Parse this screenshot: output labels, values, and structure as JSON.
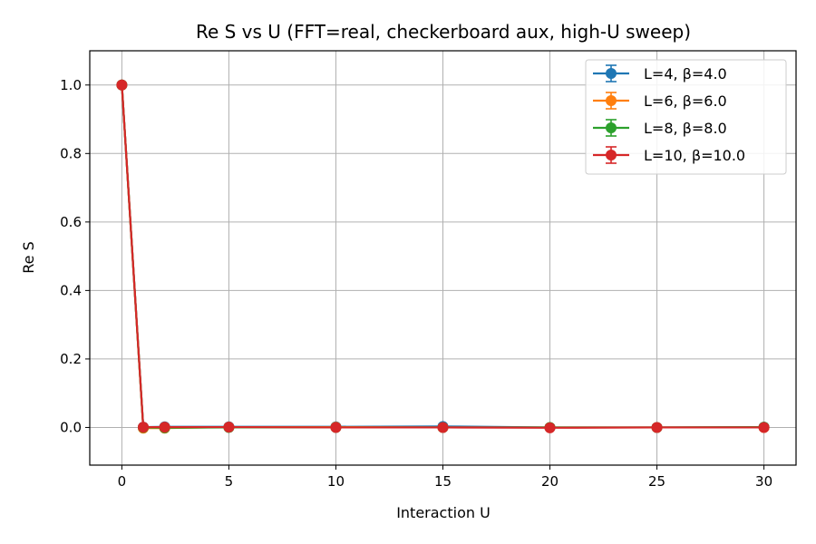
{
  "chart_data": {
    "type": "line",
    "title": "Re S vs U (FFT=real, checkerboard aux, high-U sweep)",
    "xlabel": "Interaction U",
    "ylabel": "Re S",
    "xlim": [
      -1.5,
      31.5
    ],
    "ylim": [
      -0.11,
      1.1
    ],
    "xticks": [
      0,
      5,
      10,
      15,
      20,
      25,
      30
    ],
    "yticks": [
      0.0,
      0.2,
      0.4,
      0.6,
      0.8,
      1.0
    ],
    "xtick_labels": [
      "0",
      "5",
      "10",
      "15",
      "20",
      "25",
      "30"
    ],
    "ytick_labels": [
      "0.0",
      "0.2",
      "0.4",
      "0.6",
      "0.8",
      "1.0"
    ],
    "grid": true,
    "legend_position": "top-right",
    "x": [
      0,
      1,
      2,
      5,
      10,
      15,
      20,
      25,
      30
    ],
    "series": [
      {
        "name": "L=4, β=4.0",
        "color": "#1f77b4",
        "values": [
          1.0,
          0.001,
          0.002,
          0.002,
          0.002,
          0.003,
          0.0,
          0.0,
          0.001
        ]
      },
      {
        "name": "L=6, β=6.0",
        "color": "#ff7f0e",
        "values": [
          1.0,
          -0.002,
          -0.002,
          0.001,
          0.001,
          0.0,
          0.0,
          0.0,
          0.0
        ]
      },
      {
        "name": "L=8, β=8.0",
        "color": "#2ca02c",
        "values": [
          1.0,
          0.0,
          -0.001,
          0.0,
          0.0,
          0.0,
          0.0,
          0.0,
          0.001
        ]
      },
      {
        "name": "L=10, β=10.0",
        "color": "#d62728",
        "values": [
          1.0,
          0.001,
          0.001,
          0.001,
          0.0,
          0.0,
          -0.001,
          0.0,
          0.0
        ]
      }
    ]
  }
}
